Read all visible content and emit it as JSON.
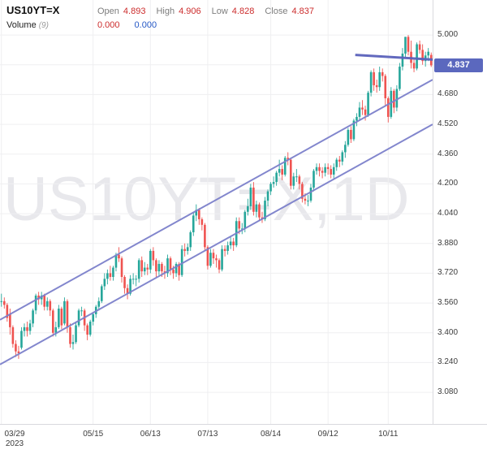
{
  "header": {
    "symbol": "US10YT=X",
    "fields": [
      {
        "label": "Open",
        "value": "4.893"
      },
      {
        "label": "High",
        "value": "4.906"
      },
      {
        "label": "Low",
        "value": "4.828"
      },
      {
        "label": "Close",
        "value": "4.837"
      }
    ],
    "volume_label": "Volume",
    "volume_param": "(9)",
    "volume_values": [
      {
        "value": "0.000",
        "color": "#cc2c2c"
      },
      {
        "value": "0.000",
        "color": "#2457c5"
      }
    ]
  },
  "watermark": "US10YT=X,1D",
  "price_badge": {
    "value": "4.837",
    "color": "#5b68be"
  },
  "chart_data": {
    "type": "candlestick",
    "symbol": "US10YT=X",
    "interval": "1D",
    "title": "US10YT=X,1D",
    "last": {
      "open": 4.893,
      "high": 4.906,
      "low": 4.828,
      "close": 4.837
    },
    "ylim": [
      2.91,
      5.188
    ],
    "y_axis": {
      "top_value": 5.188,
      "ticks": [
        5.0,
        4.84,
        4.68,
        4.52,
        4.36,
        4.2,
        4.04,
        3.88,
        3.72,
        3.56,
        3.4,
        3.24,
        3.08
      ]
    },
    "x_axis": {
      "tick_indices": [
        0,
        32,
        52,
        72,
        94,
        114,
        135
      ],
      "tick_labels": [
        "03/29",
        "05/15",
        "06/13",
        "07/13",
        "08/14",
        "09/12",
        "10/11"
      ],
      "year_label": "2023"
    },
    "colors": {
      "up": "#26a69a",
      "down": "#ef5350",
      "grid": "#efeff1",
      "trend": "#7b80ca",
      "resistance": "#5a61bb",
      "badge": "#5b68be"
    },
    "trend_lines": [
      {
        "name": "channel-upper-line",
        "i1": 0,
        "v1": 3.47,
        "i2": 151,
        "v2": 4.76,
        "color": "#7b80ca",
        "width": 2
      },
      {
        "name": "channel-lower-line",
        "i1": 0,
        "v1": 3.23,
        "i2": 151,
        "v2": 4.52,
        "color": "#7b80ca",
        "width": 2
      },
      {
        "name": "resistance-line",
        "i1": 124,
        "v1": 4.893,
        "i2": 151,
        "v2": 4.868,
        "color": "#5a61bb",
        "width": 3
      }
    ],
    "candles": [
      [
        3.57,
        3.61,
        3.54,
        3.57
      ],
      [
        3.57,
        3.59,
        3.53,
        3.55
      ],
      [
        3.55,
        3.56,
        3.46,
        3.48
      ],
      [
        3.5,
        3.53,
        3.39,
        3.43
      ],
      [
        3.43,
        3.44,
        3.32,
        3.34
      ],
      [
        3.34,
        3.36,
        3.27,
        3.3
      ],
      [
        3.3,
        3.33,
        3.26,
        3.29
      ],
      [
        3.32,
        3.43,
        3.31,
        3.41
      ],
      [
        3.41,
        3.45,
        3.38,
        3.43
      ],
      [
        3.43,
        3.46,
        3.38,
        3.41
      ],
      [
        3.41,
        3.47,
        3.39,
        3.45
      ],
      [
        3.45,
        3.53,
        3.43,
        3.52
      ],
      [
        3.52,
        3.61,
        3.5,
        3.6
      ],
      [
        3.6,
        3.62,
        3.55,
        3.58
      ],
      [
        3.58,
        3.62,
        3.55,
        3.6
      ],
      [
        3.6,
        3.61,
        3.52,
        3.54
      ],
      [
        3.54,
        3.59,
        3.52,
        3.57
      ],
      [
        3.57,
        3.58,
        3.49,
        3.52
      ],
      [
        3.52,
        3.53,
        3.38,
        3.4
      ],
      [
        3.4,
        3.46,
        3.38,
        3.43
      ],
      [
        3.43,
        3.55,
        3.42,
        3.53
      ],
      [
        3.53,
        3.54,
        3.42,
        3.44
      ],
      [
        3.45,
        3.59,
        3.44,
        3.57
      ],
      [
        3.57,
        3.58,
        3.4,
        3.43
      ],
      [
        3.43,
        3.45,
        3.32,
        3.34
      ],
      [
        3.34,
        3.39,
        3.31,
        3.35
      ],
      [
        3.35,
        3.46,
        3.34,
        3.44
      ],
      [
        3.44,
        3.53,
        3.43,
        3.52
      ],
      [
        3.52,
        3.54,
        3.49,
        3.52
      ],
      [
        3.52,
        3.53,
        3.41,
        3.44
      ],
      [
        3.44,
        3.45,
        3.36,
        3.39
      ],
      [
        3.39,
        3.47,
        3.38,
        3.46
      ],
      [
        3.46,
        3.51,
        3.44,
        3.5
      ],
      [
        3.5,
        3.55,
        3.48,
        3.54
      ],
      [
        3.54,
        3.59,
        3.52,
        3.57
      ],
      [
        3.57,
        3.66,
        3.56,
        3.65
      ],
      [
        3.65,
        3.72,
        3.63,
        3.69
      ],
      [
        3.69,
        3.74,
        3.66,
        3.72
      ],
      [
        3.72,
        3.76,
        3.68,
        3.7
      ],
      [
        3.7,
        3.76,
        3.68,
        3.75
      ],
      [
        3.75,
        3.83,
        3.73,
        3.82
      ],
      [
        3.82,
        3.86,
        3.78,
        3.8
      ],
      [
        3.8,
        3.81,
        3.67,
        3.7
      ],
      [
        3.7,
        3.71,
        3.61,
        3.64
      ],
      [
        3.64,
        3.66,
        3.58,
        3.61
      ],
      [
        3.61,
        3.71,
        3.6,
        3.69
      ],
      [
        3.69,
        3.72,
        3.66,
        3.69
      ],
      [
        3.69,
        3.71,
        3.65,
        3.69
      ],
      [
        3.69,
        3.8,
        3.67,
        3.79
      ],
      [
        3.79,
        3.81,
        3.7,
        3.73
      ],
      [
        3.73,
        3.78,
        3.71,
        3.75
      ],
      [
        3.75,
        3.77,
        3.71,
        3.74
      ],
      [
        3.74,
        3.85,
        3.72,
        3.84
      ],
      [
        3.84,
        3.86,
        3.76,
        3.79
      ],
      [
        3.79,
        3.8,
        3.7,
        3.73
      ],
      [
        3.73,
        3.79,
        3.71,
        3.77
      ],
      [
        3.77,
        3.78,
        3.7,
        3.73
      ],
      [
        3.73,
        3.76,
        3.69,
        3.72
      ],
      [
        3.72,
        3.82,
        3.7,
        3.8
      ],
      [
        3.8,
        3.81,
        3.71,
        3.74
      ],
      [
        3.74,
        3.76,
        3.69,
        3.72
      ],
      [
        3.72,
        3.78,
        3.7,
        3.77
      ],
      [
        3.77,
        3.78,
        3.68,
        3.71
      ],
      [
        3.71,
        3.87,
        3.7,
        3.85
      ],
      [
        3.85,
        3.88,
        3.81,
        3.84
      ],
      [
        3.84,
        3.88,
        3.82,
        3.86
      ],
      [
        3.86,
        3.95,
        3.84,
        3.94
      ],
      [
        3.94,
        4.05,
        3.92,
        4.03
      ],
      [
        4.03,
        4.09,
        4.0,
        4.06
      ],
      [
        4.06,
        4.07,
        3.98,
        4.01
      ],
      [
        4.01,
        4.02,
        3.95,
        3.98
      ],
      [
        3.98,
        3.99,
        3.84,
        3.86
      ],
      [
        3.86,
        3.87,
        3.74,
        3.76
      ],
      [
        3.76,
        3.85,
        3.75,
        3.83
      ],
      [
        3.83,
        3.85,
        3.77,
        3.8
      ],
      [
        3.8,
        3.82,
        3.75,
        3.79
      ],
      [
        3.79,
        3.8,
        3.72,
        3.74
      ],
      [
        3.74,
        3.87,
        3.73,
        3.85
      ],
      [
        3.85,
        3.87,
        3.81,
        3.84
      ],
      [
        3.84,
        3.89,
        3.82,
        3.87
      ],
      [
        3.87,
        3.92,
        3.85,
        3.89
      ],
      [
        3.89,
        3.91,
        3.84,
        3.87
      ],
      [
        3.87,
        4.02,
        3.86,
        4.0
      ],
      [
        4.0,
        4.02,
        3.93,
        3.96
      ],
      [
        3.96,
        3.99,
        3.93,
        3.96
      ],
      [
        3.96,
        4.06,
        3.94,
        4.05
      ],
      [
        4.05,
        4.12,
        4.03,
        4.08
      ],
      [
        4.08,
        4.2,
        4.06,
        4.18
      ],
      [
        4.18,
        4.21,
        4.03,
        4.05
      ],
      [
        4.05,
        4.11,
        4.02,
        4.09
      ],
      [
        4.09,
        4.1,
        4.0,
        4.02
      ],
      [
        4.02,
        4.05,
        3.99,
        4.01
      ],
      [
        4.01,
        4.13,
        4.0,
        4.11
      ],
      [
        4.11,
        4.17,
        4.08,
        4.16
      ],
      [
        4.16,
        4.21,
        4.14,
        4.2
      ],
      [
        4.2,
        4.24,
        4.18,
        4.21
      ],
      [
        4.21,
        4.27,
        4.19,
        4.26
      ],
      [
        4.26,
        4.33,
        4.24,
        4.28
      ],
      [
        4.28,
        4.3,
        4.22,
        4.25
      ],
      [
        4.25,
        4.35,
        4.24,
        4.34
      ],
      [
        4.34,
        4.37,
        4.3,
        4.33
      ],
      [
        4.33,
        4.34,
        4.17,
        4.19
      ],
      [
        4.19,
        4.26,
        4.17,
        4.24
      ],
      [
        4.24,
        4.28,
        4.21,
        4.24
      ],
      [
        4.24,
        4.25,
        4.17,
        4.2
      ],
      [
        4.2,
        4.21,
        4.1,
        4.12
      ],
      [
        4.12,
        4.15,
        4.09,
        4.11
      ],
      [
        4.11,
        4.14,
        4.08,
        4.11
      ],
      [
        4.11,
        4.2,
        4.1,
        4.18
      ],
      [
        4.18,
        4.28,
        4.16,
        4.27
      ],
      [
        4.27,
        4.31,
        4.25,
        4.29
      ],
      [
        4.29,
        4.31,
        4.24,
        4.27
      ],
      [
        4.27,
        4.29,
        4.23,
        4.26
      ],
      [
        4.26,
        4.31,
        4.24,
        4.29
      ],
      [
        4.29,
        4.31,
        4.25,
        4.28
      ],
      [
        4.28,
        4.3,
        4.23,
        4.25
      ],
      [
        4.25,
        4.31,
        4.23,
        4.29
      ],
      [
        4.29,
        4.34,
        4.27,
        4.33
      ],
      [
        4.33,
        4.35,
        4.29,
        4.32
      ],
      [
        4.32,
        4.38,
        4.3,
        4.37
      ],
      [
        4.37,
        4.43,
        4.34,
        4.41
      ],
      [
        4.41,
        4.5,
        4.4,
        4.49
      ],
      [
        4.49,
        4.51,
        4.42,
        4.44
      ],
      [
        4.44,
        4.55,
        4.43,
        4.54
      ],
      [
        4.54,
        4.58,
        4.51,
        4.56
      ],
      [
        4.56,
        4.64,
        4.54,
        4.61
      ],
      [
        4.61,
        4.65,
        4.57,
        4.6
      ],
      [
        4.6,
        4.62,
        4.54,
        4.57
      ],
      [
        4.57,
        4.7,
        4.56,
        4.69
      ],
      [
        4.69,
        4.81,
        4.67,
        4.8
      ],
      [
        4.8,
        4.82,
        4.7,
        4.73
      ],
      [
        4.73,
        4.76,
        4.69,
        4.72
      ],
      [
        4.72,
        4.83,
        4.7,
        4.8
      ],
      [
        4.8,
        4.82,
        4.75,
        4.78
      ],
      [
        4.78,
        4.79,
        4.62,
        4.66
      ],
      [
        4.66,
        4.67,
        4.53,
        4.56
      ],
      [
        4.56,
        4.72,
        4.55,
        4.7
      ],
      [
        4.7,
        4.71,
        4.58,
        4.61
      ],
      [
        4.61,
        4.73,
        4.59,
        4.71
      ],
      [
        4.71,
        4.85,
        4.7,
        4.83
      ],
      [
        4.83,
        4.93,
        4.81,
        4.9
      ],
      [
        4.9,
        4.99,
        4.88,
        4.99
      ],
      [
        4.99,
        5.0,
        4.89,
        4.91
      ],
      [
        4.91,
        4.97,
        4.82,
        4.85
      ],
      [
        4.85,
        4.87,
        4.8,
        4.82
      ],
      [
        4.82,
        4.96,
        4.81,
        4.95
      ],
      [
        4.95,
        4.97,
        4.9,
        4.92
      ],
      [
        4.92,
        4.95,
        4.84,
        4.86
      ],
      [
        4.86,
        4.91,
        4.83,
        4.89
      ],
      [
        4.89,
        4.93,
        4.86,
        4.91
      ],
      [
        4.893,
        4.906,
        4.828,
        4.837
      ]
    ]
  }
}
